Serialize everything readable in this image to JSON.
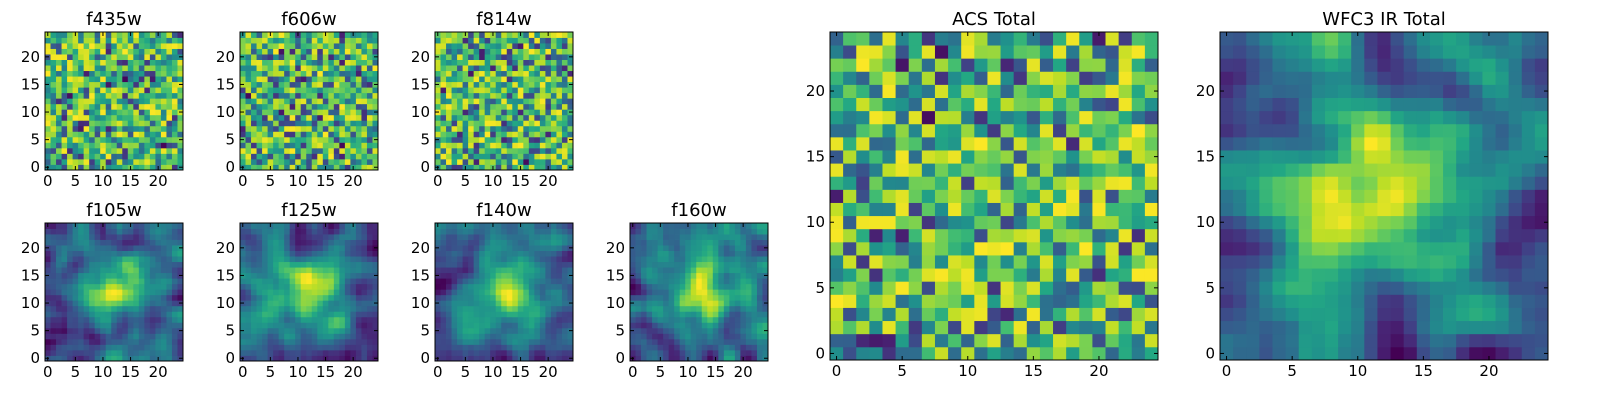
{
  "chart_data": [
    {
      "type": "heatmap",
      "title": "f435w",
      "image_size": 25,
      "colormap": "viridis",
      "xticks": [
        "0",
        "5",
        "10",
        "15",
        "20"
      ],
      "yticks": [
        "0",
        "5",
        "10",
        "15",
        "20"
      ],
      "texture": "noise",
      "seed": 11
    },
    {
      "type": "heatmap",
      "title": "f606w",
      "image_size": 25,
      "colormap": "viridis",
      "xticks": [
        "0",
        "5",
        "10",
        "15",
        "20"
      ],
      "yticks": [
        "0",
        "5",
        "10",
        "15",
        "20"
      ],
      "texture": "noise",
      "seed": 23
    },
    {
      "type": "heatmap",
      "title": "f814w",
      "image_size": 25,
      "colormap": "viridis",
      "xticks": [
        "0",
        "5",
        "10",
        "15",
        "20"
      ],
      "yticks": [
        "0",
        "5",
        "10",
        "15",
        "20"
      ],
      "texture": "noise",
      "seed": 37
    },
    {
      "type": "heatmap",
      "title": "f105w",
      "image_size": 25,
      "colormap": "viridis",
      "xticks": [
        "0",
        "5",
        "10",
        "15",
        "20"
      ],
      "yticks": [
        "0",
        "5",
        "10",
        "15",
        "20"
      ],
      "texture": "smooth",
      "seed": 41
    },
    {
      "type": "heatmap",
      "title": "f125w",
      "image_size": 25,
      "colormap": "viridis",
      "xticks": [
        "0",
        "5",
        "10",
        "15",
        "20"
      ],
      "yticks": [
        "0",
        "5",
        "10",
        "15",
        "20"
      ],
      "texture": "smooth",
      "seed": 53
    },
    {
      "type": "heatmap",
      "title": "f140w",
      "image_size": 25,
      "colormap": "viridis",
      "xticks": [
        "0",
        "5",
        "10",
        "15",
        "20"
      ],
      "yticks": [
        "0",
        "5",
        "10",
        "15",
        "20"
      ],
      "texture": "smooth",
      "seed": 67
    },
    {
      "type": "heatmap",
      "title": "f160w",
      "image_size": 25,
      "colormap": "viridis",
      "xticks": [
        "0",
        "5",
        "10",
        "15",
        "20"
      ],
      "yticks": [
        "0",
        "5",
        "10",
        "15",
        "20"
      ],
      "texture": "smooth",
      "seed": 79
    },
    {
      "type": "heatmap",
      "title": "ACS Total",
      "image_size": 25,
      "colormap": "viridis",
      "xticks": [
        "0",
        "5",
        "10",
        "15",
        "20"
      ],
      "yticks": [
        "0",
        "5",
        "10",
        "15",
        "20"
      ],
      "texture": "noise",
      "seed": 97
    },
    {
      "type": "heatmap",
      "title": "WFC3 IR Total",
      "image_size": 25,
      "colormap": "viridis",
      "xticks": [
        "0",
        "5",
        "10",
        "15",
        "20"
      ],
      "yticks": [
        "0",
        "5",
        "10",
        "15",
        "20"
      ],
      "texture": "smooth",
      "seed": 101
    }
  ]
}
